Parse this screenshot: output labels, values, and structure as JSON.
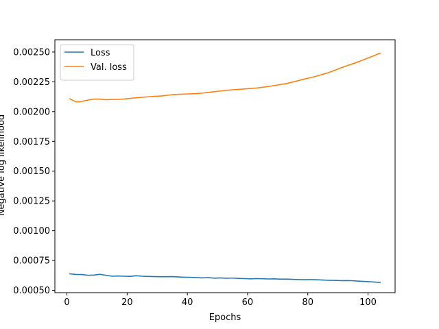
{
  "chart_data": {
    "type": "line",
    "xlabel": "Epochs",
    "ylabel": "Negative log likelihood",
    "xlim": [
      -4,
      109
    ],
    "ylim": [
      0.00048,
      0.002603
    ],
    "xticks": [
      0,
      20,
      40,
      60,
      80,
      100
    ],
    "yticks": [
      0.0005,
      0.00075,
      0.001,
      0.00125,
      0.0015,
      0.00175,
      0.002,
      0.00225,
      0.0025
    ],
    "ytick_labels": [
      "0.00050",
      "0.00075",
      "0.00100",
      "0.00125",
      "0.00150",
      "0.00175",
      "0.00200",
      "0.00225",
      "0.00250"
    ],
    "grid": false,
    "legend": {
      "placement": "top-left"
    },
    "series": [
      {
        "name": "Loss",
        "color": "#1f77b4",
        "x": [
          1,
          3,
          5,
          7,
          9,
          11,
          13,
          15,
          17,
          19,
          21,
          23,
          25,
          27,
          29,
          31,
          33,
          35,
          37,
          39,
          41,
          43,
          45,
          47,
          49,
          51,
          53,
          55,
          57,
          59,
          61,
          63,
          65,
          67,
          69,
          71,
          73,
          75,
          77,
          79,
          81,
          83,
          85,
          87,
          89,
          91,
          93,
          95,
          97,
          99,
          101,
          104
        ],
        "values": [
          0.000638,
          0.000633,
          0.000632,
          0.000626,
          0.000628,
          0.000634,
          0.000626,
          0.000618,
          0.00062,
          0.000618,
          0.000617,
          0.000622,
          0.000618,
          0.000616,
          0.000615,
          0.000614,
          0.000614,
          0.000615,
          0.000612,
          0.00061,
          0.000609,
          0.000606,
          0.000604,
          0.000606,
          0.000602,
          0.000604,
          0.000601,
          0.000603,
          0.0006,
          0.000598,
          0.000596,
          0.000598,
          0.000597,
          0.000595,
          0.000596,
          0.000593,
          0.000594,
          0.000592,
          0.00059,
          0.000589,
          0.00059,
          0.000588,
          0.000586,
          0.000584,
          0.000583,
          0.000581,
          0.000582,
          0.00058,
          0.000577,
          0.000574,
          0.000571,
          0.000566
        ]
      },
      {
        "name": "Val. loss",
        "color": "#ff7f0e",
        "x": [
          1,
          2,
          3,
          4,
          5,
          7,
          9,
          11,
          13,
          15,
          17,
          19,
          21,
          23,
          25,
          27,
          29,
          31,
          33,
          35,
          37,
          39,
          41,
          43,
          45,
          47,
          49,
          51,
          53,
          55,
          57,
          59,
          61,
          63,
          65,
          67,
          69,
          71,
          73,
          75,
          77,
          79,
          81,
          83,
          85,
          87,
          89,
          91,
          93,
          95,
          97,
          99,
          101,
          104
        ],
        "values": [
          0.002108,
          0.002093,
          0.002083,
          0.002082,
          0.002086,
          0.002097,
          0.002105,
          0.002105,
          0.0021,
          0.002102,
          0.002103,
          0.002106,
          0.002111,
          0.002116,
          0.00212,
          0.002124,
          0.002128,
          0.00213,
          0.002136,
          0.002142,
          0.002145,
          0.002147,
          0.002149,
          0.002151,
          0.002155,
          0.002161,
          0.002167,
          0.002173,
          0.002178,
          0.002183,
          0.002186,
          0.00219,
          0.002194,
          0.002198,
          0.002204,
          0.002211,
          0.002219,
          0.002227,
          0.002236,
          0.002248,
          0.002261,
          0.002274,
          0.002286,
          0.002298,
          0.002313,
          0.002328,
          0.002347,
          0.002367,
          0.002385,
          0.002402,
          0.00242,
          0.00244,
          0.00246,
          0.00249
        ]
      }
    ]
  }
}
